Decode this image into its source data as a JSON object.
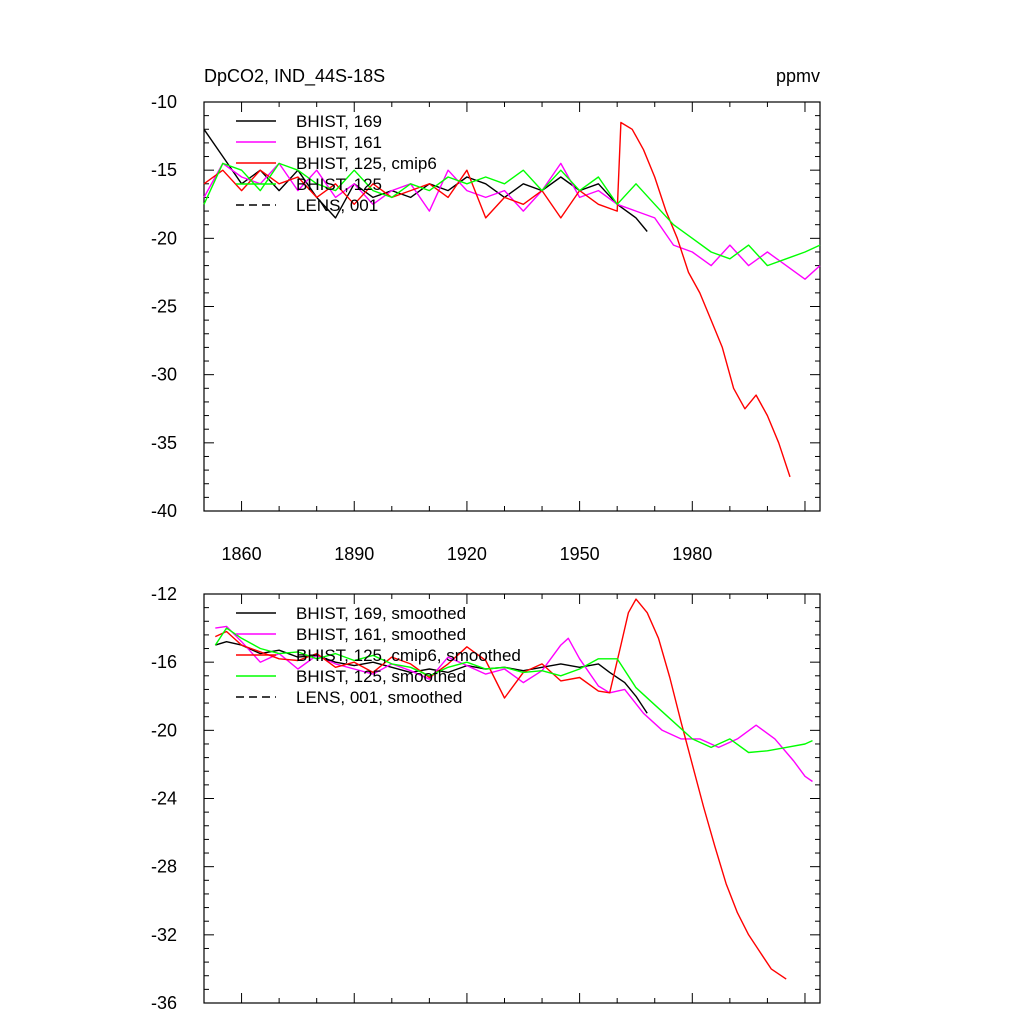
{
  "figure_title": "DpCO2, IND_44S-18S",
  "units": "ppmv",
  "colors": {
    "BHIST_169": "#000000",
    "BHIST_161": "#ff00ff",
    "BHIST_125_cmip6": "#ff0000",
    "BHIST_125": "#00ff00",
    "LENS_001": "#000000"
  },
  "chart_data": [
    {
      "type": "line",
      "title": "DpCO2, IND_44S-18S",
      "units": "ppmv",
      "xlim": [
        1850,
        2014
      ],
      "ylim": [
        -40,
        -10
      ],
      "xticks": [
        1860,
        1890,
        1920,
        1950,
        1980
      ],
      "xtick_labels": [
        "1860",
        "1890",
        "1920",
        "1950",
        "1980"
      ],
      "yticks": [
        -10,
        -15,
        -20,
        -25,
        -30,
        -35,
        -40
      ],
      "ytick_labels": [
        "-10",
        "-15",
        "-20",
        "-25",
        "-30",
        "-35",
        "-40"
      ],
      "legend": [
        "BHIST, 169",
        "BHIST, 161",
        "BHIST, 125, cmip6",
        "BHIST, 125",
        "LENS, 001"
      ],
      "legend_position": "top-left",
      "series": [
        {
          "name": "BHIST, 169",
          "color": "#000000",
          "dash": "solid",
          "x": [
            1850,
            1855,
            1860,
            1865,
            1870,
            1875,
            1880,
            1885,
            1890,
            1895,
            1900,
            1905,
            1910,
            1915,
            1920,
            1925,
            1930,
            1935,
            1940,
            1945,
            1950,
            1955,
            1960,
            1965,
            1968
          ],
          "y": [
            -12,
            -14,
            -16,
            -15,
            -16.5,
            -15,
            -17,
            -18.5,
            -16,
            -17,
            -16.5,
            -17,
            -16,
            -16.5,
            -15.5,
            -16,
            -17,
            -16,
            -16.5,
            -15.5,
            -16.5,
            -16,
            -17.5,
            -18.5,
            -19.5
          ]
        },
        {
          "name": "BHIST, 161",
          "color": "#ff00ff",
          "dash": "solid",
          "x": [
            1850,
            1855,
            1860,
            1865,
            1870,
            1875,
            1880,
            1885,
            1890,
            1895,
            1900,
            1905,
            1910,
            1915,
            1920,
            1925,
            1930,
            1935,
            1940,
            1945,
            1950,
            1955,
            1960,
            1965,
            1970,
            1975,
            1980,
            1985,
            1990,
            1995,
            2000,
            2005,
            2010,
            2014
          ],
          "y": [
            -17,
            -14.5,
            -15.5,
            -16,
            -14.5,
            -16.5,
            -15,
            -17,
            -16,
            -17.5,
            -16.5,
            -16,
            -18,
            -15,
            -16.5,
            -17,
            -16.5,
            -18,
            -16.5,
            -14.5,
            -17,
            -16.5,
            -17.5,
            -18,
            -18.5,
            -20.5,
            -21,
            -22,
            -20.5,
            -22,
            -21,
            -22,
            -23,
            -22
          ]
        },
        {
          "name": "BHIST, 125, cmip6",
          "color": "#ff0000",
          "dash": "solid",
          "x": [
            1850,
            1855,
            1860,
            1865,
            1870,
            1875,
            1880,
            1885,
            1890,
            1895,
            1900,
            1905,
            1910,
            1915,
            1920,
            1925,
            1930,
            1935,
            1940,
            1945,
            1950,
            1955,
            1960,
            1961,
            1964,
            1967,
            1970,
            1973,
            1976,
            1979,
            1982,
            1985,
            1988,
            1991,
            1994,
            1997,
            2000,
            2003,
            2006
          ],
          "y": [
            -16,
            -15,
            -16.5,
            -15,
            -16,
            -15.5,
            -17,
            -16,
            -17.5,
            -16,
            -17,
            -16.5,
            -16,
            -17,
            -15,
            -18.5,
            -17,
            -17.5,
            -16.5,
            -18.5,
            -16.5,
            -17.5,
            -18,
            -11.5,
            -12,
            -13.5,
            -15.5,
            -18,
            -20,
            -22.5,
            -24,
            -26,
            -28,
            -31,
            -32.5,
            -31.5,
            -33,
            -35,
            -37.5
          ]
        },
        {
          "name": "BHIST, 125",
          "color": "#00ff00",
          "dash": "solid",
          "x": [
            1850,
            1855,
            1860,
            1865,
            1870,
            1875,
            1880,
            1885,
            1890,
            1895,
            1900,
            1905,
            1910,
            1915,
            1920,
            1925,
            1930,
            1935,
            1940,
            1945,
            1950,
            1955,
            1960,
            1965,
            1970,
            1975,
            1980,
            1985,
            1990,
            1995,
            2000,
            2005,
            2010,
            2014
          ],
          "y": [
            -17.5,
            -14.5,
            -15,
            -16.5,
            -14.5,
            -15,
            -16,
            -16.5,
            -15,
            -16.5,
            -17,
            -16,
            -16.5,
            -15.5,
            -16,
            -15.5,
            -16,
            -15,
            -16.5,
            -15,
            -16.5,
            -15.5,
            -17.5,
            -16,
            -17.5,
            -19,
            -20,
            -21,
            -21.5,
            -20.5,
            -22,
            -21.5,
            -21,
            -20.5
          ]
        },
        {
          "name": "LENS, 001",
          "color": "#000000",
          "dash": "dashed",
          "x": [],
          "y": []
        }
      ]
    },
    {
      "type": "line",
      "title": "",
      "xlim": [
        1850,
        2014
      ],
      "ylim": [
        -36,
        -12
      ],
      "xticks": [
        1860,
        1890,
        1920,
        1950,
        1980
      ],
      "yticks": [
        -12,
        -16,
        -20,
        -24,
        -28,
        -32,
        -36
      ],
      "ytick_labels": [
        "-12",
        "-16",
        "-20",
        "-24",
        "-28",
        "-32",
        "-36"
      ],
      "legend": [
        "BHIST, 169, smoothed",
        "BHIST, 161, smoothed",
        "BHIST, 125, cmip6, smoothed",
        "BHIST, 125, smoothed",
        "LENS, 001, smoothed"
      ],
      "legend_position": "top-left",
      "series": [
        {
          "name": "BHIST, 169, smoothed",
          "color": "#000000",
          "dash": "solid",
          "x": [
            1853,
            1856,
            1860,
            1865,
            1870,
            1875,
            1880,
            1885,
            1890,
            1895,
            1900,
            1905,
            1910,
            1915,
            1920,
            1925,
            1930,
            1935,
            1940,
            1945,
            1950,
            1955,
            1958,
            1962,
            1965,
            1968
          ],
          "y": [
            -15,
            -14.8,
            -15,
            -15.5,
            -15.3,
            -15.7,
            -15.6,
            -16,
            -16.2,
            -16,
            -16.3,
            -16.6,
            -16.4,
            -16.6,
            -16.2,
            -16.4,
            -16.3,
            -16.5,
            -16.3,
            -16.1,
            -16.3,
            -16.1,
            -16.6,
            -17.2,
            -18,
            -19
          ]
        },
        {
          "name": "BHIST, 161, smoothed",
          "color": "#ff00ff",
          "dash": "solid",
          "x": [
            1853,
            1856,
            1860,
            1865,
            1870,
            1875,
            1880,
            1885,
            1890,
            1895,
            1900,
            1905,
            1910,
            1915,
            1920,
            1925,
            1930,
            1935,
            1940,
            1945,
            1947,
            1950,
            1955,
            1958,
            1962,
            1967,
            1972,
            1977,
            1982,
            1987,
            1992,
            1997,
            2002,
            2007,
            2010,
            2012
          ],
          "y": [
            -14,
            -13.9,
            -14.8,
            -16,
            -15.5,
            -16.4,
            -15.6,
            -16.1,
            -16.4,
            -16.7,
            -16.1,
            -16.5,
            -17,
            -15.7,
            -16.2,
            -16.7,
            -16.4,
            -17.2,
            -16.5,
            -15,
            -14.6,
            -15.8,
            -17.4,
            -17.8,
            -17.6,
            -19,
            -20,
            -20.5,
            -20.5,
            -21,
            -20.5,
            -19.7,
            -20.5,
            -21.8,
            -22.7,
            -23
          ]
        },
        {
          "name": "BHIST, 125, cmip6, smoothed",
          "color": "#ff0000",
          "dash": "solid",
          "x": [
            1853,
            1856,
            1860,
            1865,
            1870,
            1875,
            1880,
            1885,
            1890,
            1895,
            1900,
            1905,
            1910,
            1915,
            1920,
            1925,
            1930,
            1935,
            1940,
            1945,
            1950,
            1955,
            1958,
            1961,
            1963,
            1965,
            1968,
            1971,
            1974,
            1977,
            1980,
            1983,
            1986,
            1989,
            1992,
            1995,
            1998,
            2001,
            2005
          ],
          "y": [
            -14.5,
            -14.2,
            -15,
            -15.4,
            -15.8,
            -15.9,
            -15.5,
            -16.3,
            -16,
            -16.6,
            -15.7,
            -16.1,
            -16.9,
            -16.1,
            -15.1,
            -15.9,
            -18.1,
            -16.6,
            -16.1,
            -17.1,
            -16.9,
            -17.7,
            -17.8,
            -15,
            -13.1,
            -12.3,
            -13.1,
            -14.6,
            -16.9,
            -19.5,
            -22,
            -24.5,
            -26.8,
            -29,
            -30.7,
            -32,
            -33,
            -34,
            -34.6
          ]
        },
        {
          "name": "BHIST, 125, smoothed",
          "color": "#00ff00",
          "dash": "solid",
          "x": [
            1853,
            1856,
            1860,
            1865,
            1870,
            1875,
            1880,
            1885,
            1890,
            1895,
            1900,
            1905,
            1910,
            1915,
            1920,
            1925,
            1930,
            1935,
            1940,
            1945,
            1950,
            1955,
            1960,
            1965,
            1970,
            1975,
            1980,
            1985,
            1990,
            1995,
            2000,
            2005,
            2010,
            2012
          ],
          "y": [
            -15,
            -14,
            -14.6,
            -15.2,
            -15.5,
            -15.4,
            -15.8,
            -15.5,
            -15.9,
            -15.6,
            -16.1,
            -16.3,
            -16.8,
            -16.3,
            -16,
            -16.4,
            -16.3,
            -16.6,
            -16.5,
            -16.8,
            -16.4,
            -15.8,
            -15.8,
            -17.5,
            -18.5,
            -19.5,
            -20.5,
            -21,
            -20.5,
            -21.3,
            -21.2,
            -21,
            -20.8,
            -20.6
          ]
        },
        {
          "name": "LENS, 001, smoothed",
          "color": "#000000",
          "dash": "dashed",
          "x": [],
          "y": []
        }
      ]
    }
  ]
}
